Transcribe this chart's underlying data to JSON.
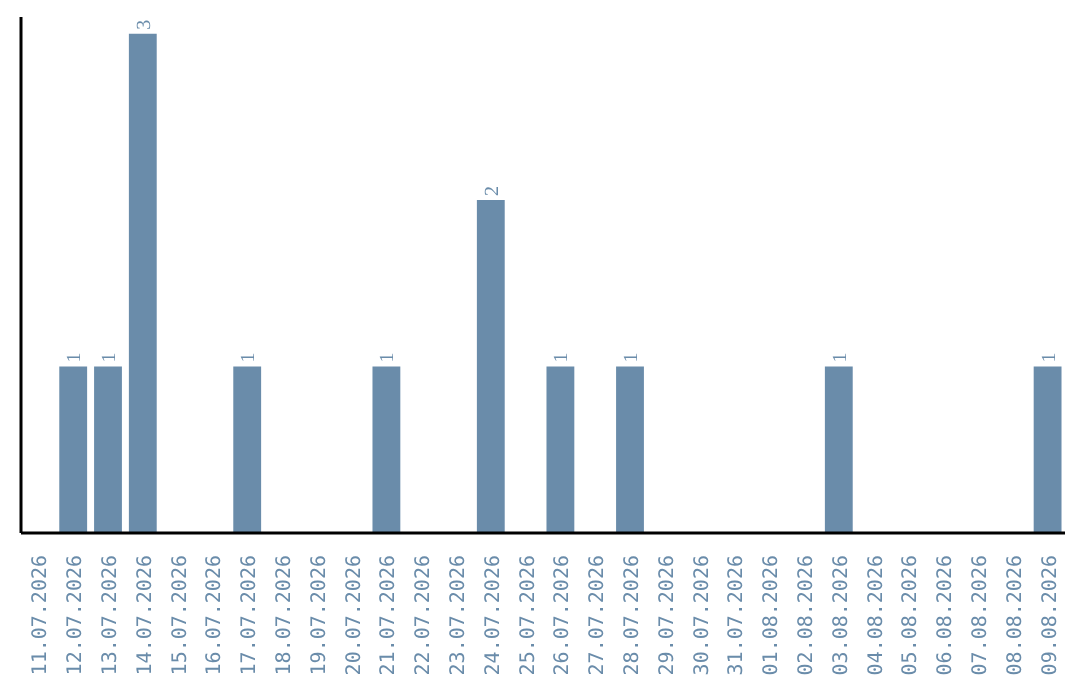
{
  "chart_data": {
    "type": "bar",
    "categories": [
      "11.07.2026",
      "12.07.2026",
      "13.07.2026",
      "14.07.2026",
      "15.07.2026",
      "16.07.2026",
      "17.07.2026",
      "18.07.2026",
      "19.07.2026",
      "20.07.2026",
      "21.07.2026",
      "22.07.2026",
      "23.07.2026",
      "24.07.2026",
      "25.07.2026",
      "26.07.2026",
      "27.07.2026",
      "28.07.2026",
      "29.07.2026",
      "30.07.2026",
      "31.07.2026",
      "01.08.2026",
      "02.08.2026",
      "03.08.2026",
      "04.08.2026",
      "05.08.2026",
      "06.08.2026",
      "07.08.2026",
      "08.08.2026",
      "09.08.2026"
    ],
    "values": [
      0,
      1,
      1,
      3,
      0,
      0,
      1,
      0,
      0,
      0,
      1,
      0,
      0,
      2,
      0,
      1,
      0,
      1,
      0,
      0,
      0,
      0,
      0,
      1,
      0,
      0,
      0,
      0,
      0,
      1
    ],
    "value_labels": [
      null,
      "1",
      "1",
      "3",
      null,
      null,
      "1",
      null,
      null,
      null,
      "1",
      null,
      null,
      "2",
      null,
      "1",
      null,
      "1",
      null,
      null,
      null,
      null,
      null,
      "1",
      null,
      null,
      null,
      null,
      null,
      "1"
    ],
    "color": "#6a8caa",
    "ylim": [
      0,
      3.1
    ],
    "tick_labels": "x",
    "grid": false
  }
}
